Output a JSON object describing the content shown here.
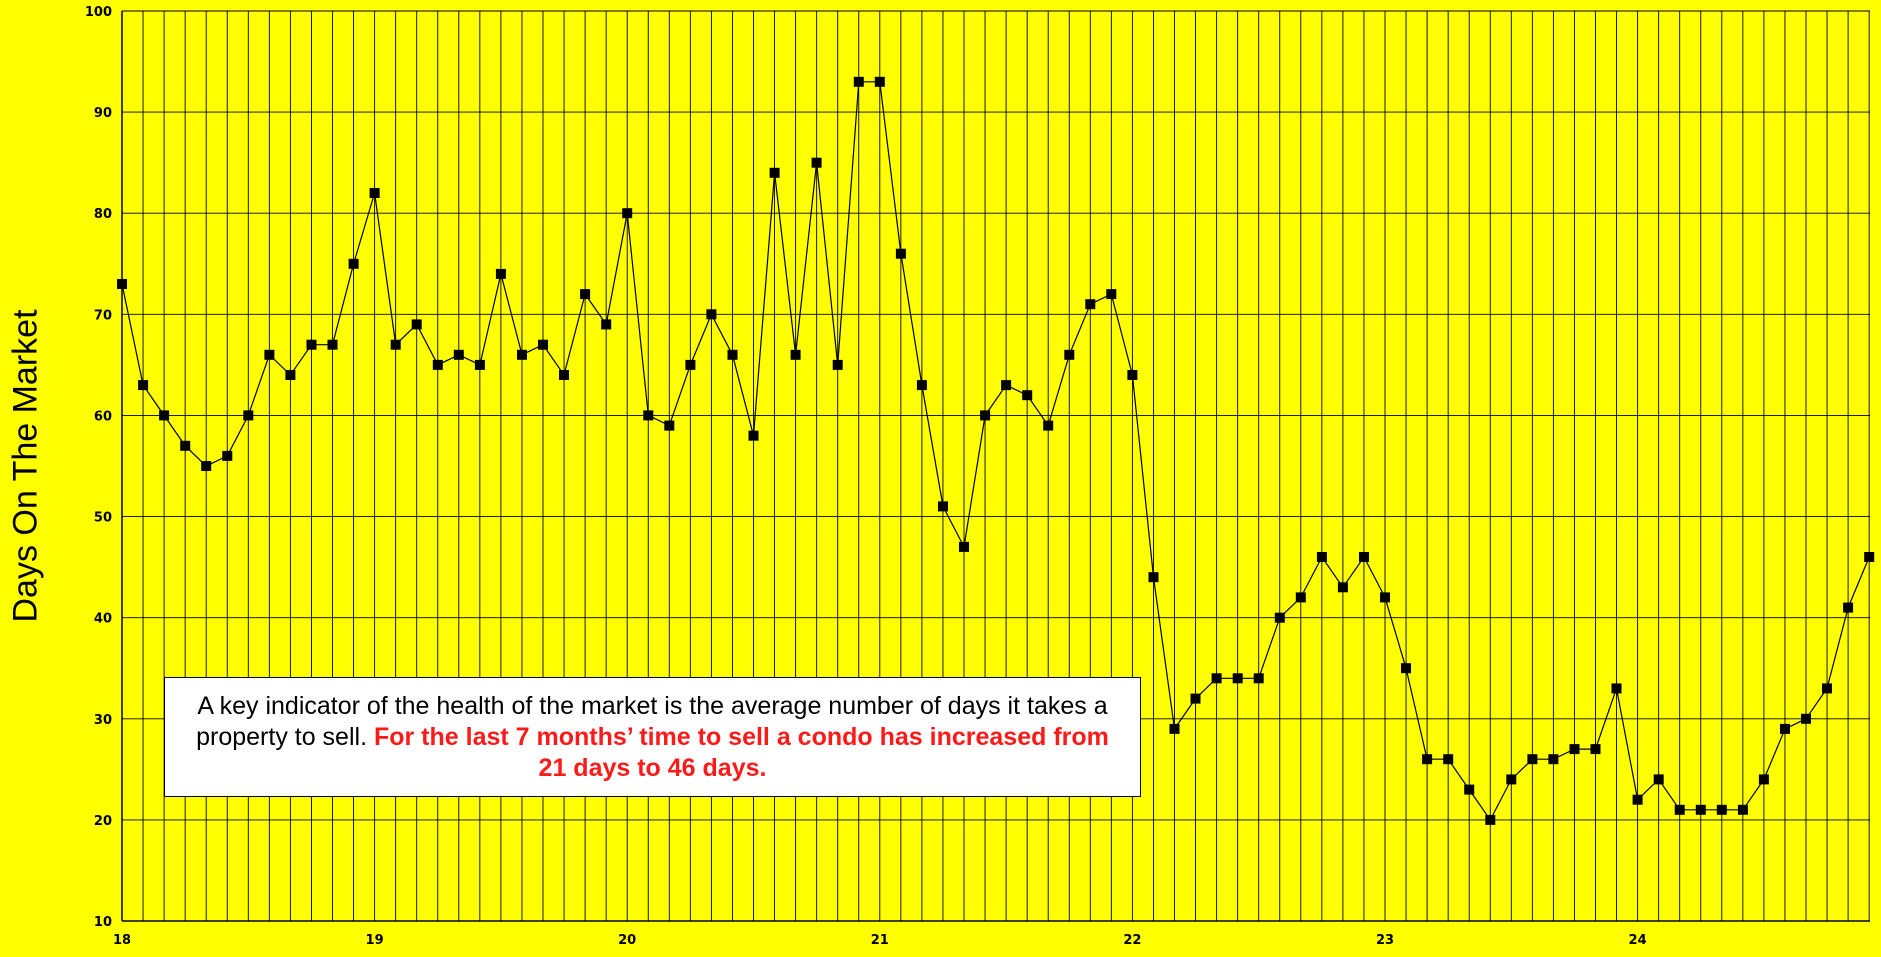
{
  "chart_data": {
    "type": "line",
    "title": "",
    "xlabel": "",
    "ylabel": "Days On The Market",
    "ylim": [
      10,
      100
    ],
    "y_ticks": [
      "10",
      "20",
      "30",
      "40",
      "50",
      "60",
      "70",
      "80",
      "90",
      "100"
    ],
    "x_tick_labels": [
      "18",
      "19",
      "20",
      "21",
      "22",
      "23",
      "24"
    ],
    "grid": true,
    "colors": {
      "background": "#ffff00",
      "line": "#000000",
      "highlight_text": "#ff1a1a"
    },
    "series": [
      {
        "marker": "square",
        "start": "2018-01",
        "frequency": "monthly",
        "values": [
          73,
          63,
          60,
          57,
          55,
          56,
          60,
          66,
          64,
          67,
          67,
          75,
          82,
          67,
          69,
          65,
          66,
          65,
          74,
          66,
          67,
          64,
          72,
          69,
          80,
          60,
          59,
          65,
          70,
          66,
          58,
          84,
          66,
          85,
          65,
          93,
          93,
          76,
          63,
          51,
          47,
          60,
          63,
          62,
          59,
          66,
          71,
          72,
          64,
          44,
          29,
          32,
          34,
          34,
          34,
          40,
          42,
          46,
          43,
          46,
          42,
          35,
          26,
          26,
          23,
          20,
          24,
          26,
          26,
          27,
          27,
          33,
          22,
          24,
          21,
          21,
          21,
          21,
          24,
          29,
          30,
          33,
          41,
          46
        ]
      }
    ]
  },
  "annotation": {
    "normal": "A key indicator of the health of the market is the average number of days it takes a property to sell. ",
    "highlight": "For the last 7 months’ time to sell a condo has increased from 21 days to 46 days."
  }
}
